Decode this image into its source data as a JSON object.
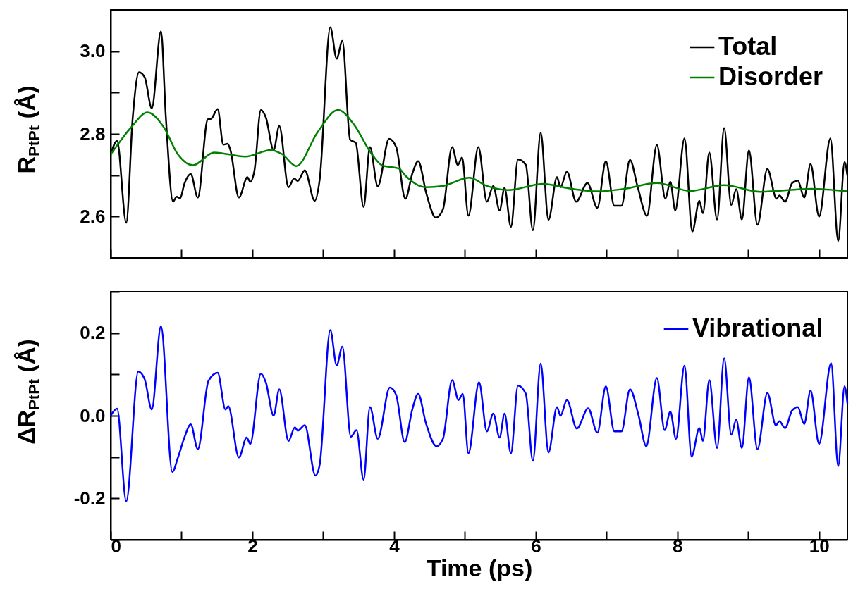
{
  "chart_data": [
    {
      "type": "line",
      "ylabel": "R$_{PtPt}$ (Å)",
      "xlim": [
        0,
        10.4
      ],
      "ylim": [
        2.5,
        3.1
      ],
      "xticks": [
        0,
        {
          "value": 1,
          "label": null
        },
        2,
        {
          "value": 3,
          "label": null
        },
        4,
        {
          "value": 5,
          "label": null
        },
        6,
        {
          "value": 7,
          "label": null
        },
        8,
        {
          "value": 9,
          "label": null
        },
        10
      ],
      "yticks": [
        {
          "value": 2.5,
          "label": null
        },
        2.6,
        {
          "value": 2.7,
          "label": null
        },
        2.8,
        {
          "value": 2.9,
          "label": null
        },
        {
          "value": 3.0,
          "label": "3.0"
        },
        {
          "value": 3.1,
          "label": null
        }
      ],
      "tick_labels": "y",
      "legend": "top right",
      "line_style": "solid",
      "series": [
        {
          "name": "Total",
          "color": "#000000",
          "x": [
            0,
            0.09,
            0.22,
            0.31,
            0.4,
            0.48,
            0.58,
            0.71,
            0.78,
            0.88,
            0.93,
            0.98,
            1.04,
            1.13,
            1.23,
            1.37,
            1.42,
            1.51,
            1.59,
            1.65,
            1.69,
            1.81,
            1.93,
            1.97,
            2.03,
            2.12,
            2.19,
            2.3,
            2.38,
            2.51,
            2.59,
            2.64,
            2.74,
            2.88,
            2.95,
            3.1,
            3.19,
            3.27,
            3.38,
            3.46,
            3.57,
            3.66,
            3.77,
            3.93,
            4.03,
            4.16,
            4.26,
            4.34,
            4.46,
            4.59,
            4.69,
            4.82,
            4.9,
            4.96,
            5.05,
            5.19,
            5.31,
            5.4,
            5.49,
            5.56,
            5.65,
            5.75,
            5.86,
            5.96,
            6.07,
            6.18,
            6.3,
            6.35,
            6.44,
            6.57,
            6.73,
            6.87,
            6.99,
            7.11,
            7.21,
            7.33,
            7.44,
            7.57,
            7.71,
            7.83,
            7.9,
            7.97,
            8.1,
            8.21,
            8.31,
            8.36,
            8.45,
            8.56,
            8.66,
            8.76,
            8.83,
            8.91,
            9.01,
            9.13,
            9.27,
            9.4,
            9.44,
            9.52,
            9.62,
            9.7,
            9.79,
            9.88,
            10.0,
            10.16,
            10.27,
            10.36,
            10.4
          ],
          "values": [
            2.75,
            2.783,
            2.585,
            2.837,
            2.949,
            2.937,
            2.862,
            3.048,
            2.837,
            2.636,
            2.648,
            2.644,
            2.679,
            2.703,
            2.646,
            2.835,
            2.837,
            2.86,
            2.774,
            2.776,
            2.761,
            2.646,
            2.695,
            2.684,
            2.712,
            2.858,
            2.84,
            2.761,
            2.819,
            2.671,
            2.692,
            2.686,
            2.712,
            2.638,
            2.689,
            3.058,
            2.982,
            3.025,
            2.786,
            2.778,
            2.623,
            2.768,
            2.673,
            2.788,
            2.768,
            2.643,
            2.705,
            2.734,
            2.653,
            2.597,
            2.617,
            2.768,
            2.725,
            2.743,
            2.602,
            2.768,
            2.636,
            2.674,
            2.615,
            2.669,
            2.575,
            2.738,
            2.725,
            2.567,
            2.803,
            2.592,
            2.695,
            2.671,
            2.709,
            2.636,
            2.681,
            2.621,
            2.734,
            2.626,
            2.626,
            2.737,
            2.671,
            2.602,
            2.773,
            2.643,
            2.684,
            2.615,
            2.789,
            2.564,
            2.638,
            2.608,
            2.755,
            2.593,
            2.814,
            2.628,
            2.666,
            2.593,
            2.76,
            2.58,
            2.715,
            2.643,
            2.651,
            2.636,
            2.681,
            2.687,
            2.646,
            2.727,
            2.6,
            2.789,
            2.541,
            2.732,
            2.699
          ]
        },
        {
          "name": "Disorder",
          "color": "#008000",
          "x": [
            0,
            0.29,
            0.52,
            0.75,
            0.95,
            1.16,
            1.46,
            1.9,
            2.26,
            2.42,
            2.62,
            2.92,
            3.21,
            3.44,
            3.67,
            3.83,
            4.07,
            4.16,
            4.44,
            4.69,
            5.06,
            5.31,
            5.61,
            6.1,
            6.51,
            6.88,
            7.25,
            7.71,
            8.18,
            8.66,
            9.17,
            9.89,
            10.4
          ],
          "values": [
            2.75,
            2.816,
            2.852,
            2.816,
            2.75,
            2.724,
            2.755,
            2.745,
            2.761,
            2.751,
            2.722,
            2.804,
            2.858,
            2.821,
            2.755,
            2.724,
            2.716,
            2.699,
            2.671,
            2.674,
            2.694,
            2.674,
            2.664,
            2.679,
            2.667,
            2.661,
            2.667,
            2.681,
            2.662,
            2.676,
            2.66,
            2.667,
            2.661
          ]
        }
      ]
    },
    {
      "type": "line",
      "xlabel": "Time (ps)",
      "ylabel": "ΔR$_{PtPt}$ (Å)",
      "xlim": [
        0,
        10.4
      ],
      "ylim": [
        -0.3,
        0.3
      ],
      "xticks": [
        0,
        {
          "value": 1,
          "label": null
        },
        2,
        {
          "value": 3,
          "label": null
        },
        4,
        {
          "value": 5,
          "label": null
        },
        6,
        {
          "value": 7,
          "label": null
        },
        8,
        {
          "value": 9,
          "label": null
        },
        10
      ],
      "yticks": [
        {
          "value": -0.3,
          "label": null
        },
        -0.2,
        {
          "value": -0.1,
          "label": null
        },
        {
          "value": 0,
          "label": "0.0"
        },
        {
          "value": 0.1,
          "label": null
        },
        0.2,
        {
          "value": 0.3,
          "label": null
        }
      ],
      "legend": "top right",
      "line_style": "solid",
      "series": [
        {
          "name": "Vibrational",
          "color": "#0000ff",
          "x": [
            0,
            0.09,
            0.22,
            0.39,
            0.48,
            0.58,
            0.71,
            0.87,
            0.95,
            1.04,
            1.13,
            1.23,
            1.38,
            1.51,
            1.62,
            1.66,
            1.81,
            1.92,
            1.97,
            2.12,
            2.19,
            2.3,
            2.38,
            2.51,
            2.6,
            2.64,
            2.74,
            2.89,
            2.95,
            3.1,
            3.19,
            3.27,
            3.39,
            3.47,
            3.57,
            3.66,
            3.77,
            3.94,
            4.03,
            4.15,
            4.26,
            4.34,
            4.45,
            4.6,
            4.69,
            4.82,
            4.91,
            4.97,
            5.05,
            5.2,
            5.31,
            5.4,
            5.49,
            5.56,
            5.65,
            5.75,
            5.86,
            5.96,
            6.07,
            6.18,
            6.3,
            6.35,
            6.44,
            6.58,
            6.74,
            6.87,
            6.99,
            7.11,
            7.21,
            7.33,
            7.45,
            7.56,
            7.71,
            7.82,
            7.9,
            7.98,
            8.1,
            8.2,
            8.31,
            8.36,
            8.45,
            8.56,
            8.66,
            8.76,
            8.83,
            8.91,
            9.01,
            9.13,
            9.27,
            9.39,
            9.44,
            9.52,
            9.62,
            9.7,
            9.79,
            9.88,
            10.0,
            10.17,
            10.27,
            10.36,
            10.4
          ],
          "values": [
            0.0,
            0.017,
            -0.207,
            0.107,
            0.088,
            0.015,
            0.217,
            -0.136,
            -0.101,
            -0.053,
            -0.021,
            -0.081,
            0.084,
            0.104,
            0.015,
            0.023,
            -0.101,
            -0.053,
            -0.068,
            0.102,
            0.081,
            0.0,
            0.064,
            -0.061,
            -0.028,
            -0.036,
            -0.023,
            -0.145,
            -0.119,
            0.207,
            0.122,
            0.167,
            -0.051,
            -0.035,
            -0.155,
            0.021,
            -0.056,
            0.068,
            0.05,
            -0.064,
            0.017,
            0.053,
            -0.018,
            -0.074,
            -0.056,
            0.086,
            0.038,
            0.053,
            -0.091,
            0.081,
            -0.038,
            0.005,
            -0.053,
            0.005,
            -0.091,
            0.073,
            0.053,
            -0.109,
            0.126,
            -0.089,
            0.021,
            0.0,
            0.038,
            -0.031,
            0.018,
            -0.041,
            0.071,
            -0.038,
            -0.038,
            0.064,
            0.002,
            -0.074,
            0.091,
            -0.035,
            0.01,
            -0.056,
            0.121,
            -0.099,
            -0.03,
            -0.061,
            0.086,
            -0.078,
            0.139,
            -0.046,
            -0.01,
            -0.078,
            0.093,
            -0.081,
            0.055,
            -0.023,
            -0.013,
            -0.03,
            0.013,
            0.021,
            -0.02,
            0.061,
            -0.068,
            0.127,
            -0.122,
            0.071,
            0.03
          ]
        }
      ]
    }
  ]
}
